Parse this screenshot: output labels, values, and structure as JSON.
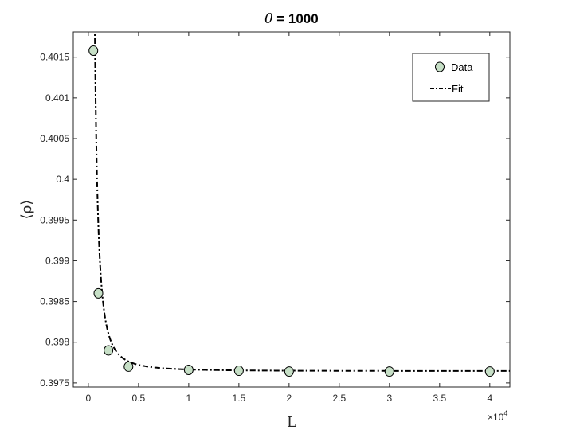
{
  "chart_data": {
    "type": "scatter",
    "title_symbol": "θ",
    "title_rest": " = 1000",
    "xlabel": "L",
    "ylabel": "⟨ρ⟩",
    "x_multiplier_base": "×10",
    "x_multiplier_exp": "4",
    "xlim": [
      -0.15,
      4.2
    ],
    "ylim": [
      0.39745,
      0.40181
    ],
    "x_ticks": [
      0,
      0.5,
      1,
      1.5,
      2,
      2.5,
      3,
      3.5,
      4
    ],
    "x_tick_labels": [
      "0",
      "0.5",
      "1",
      "1.5",
      "2",
      "2.5",
      "3",
      "3.5",
      "4"
    ],
    "y_ticks": [
      0.3975,
      0.398,
      0.3985,
      0.399,
      0.3995,
      0.4,
      0.4005,
      0.401,
      0.4015
    ],
    "y_tick_labels": [
      "0.3975",
      "0.398",
      "0.3985",
      "0.399",
      "0.3995",
      "0.4",
      "0.4005",
      "0.401",
      "0.4015"
    ],
    "series": [
      {
        "name": "Data",
        "kind": "markers",
        "color": "#c6dfc6",
        "x": [
          0.05,
          0.1,
          0.2,
          0.4,
          1,
          1.5,
          2,
          3,
          4
        ],
        "y": [
          0.40158,
          0.3986,
          0.3979,
          0.3977,
          0.39766,
          0.39765,
          0.39764,
          0.39764,
          0.39764
        ]
      },
      {
        "name": "Fit",
        "kind": "line",
        "color": "#000000",
        "style": "dash-dot",
        "model": {
          "a": 0.397645,
          "b": 2e-05,
          "c": 1.95
        }
      }
    ],
    "legend": {
      "position": "top-right",
      "entries": [
        "Data",
        "Fit"
      ]
    },
    "grid": false
  }
}
